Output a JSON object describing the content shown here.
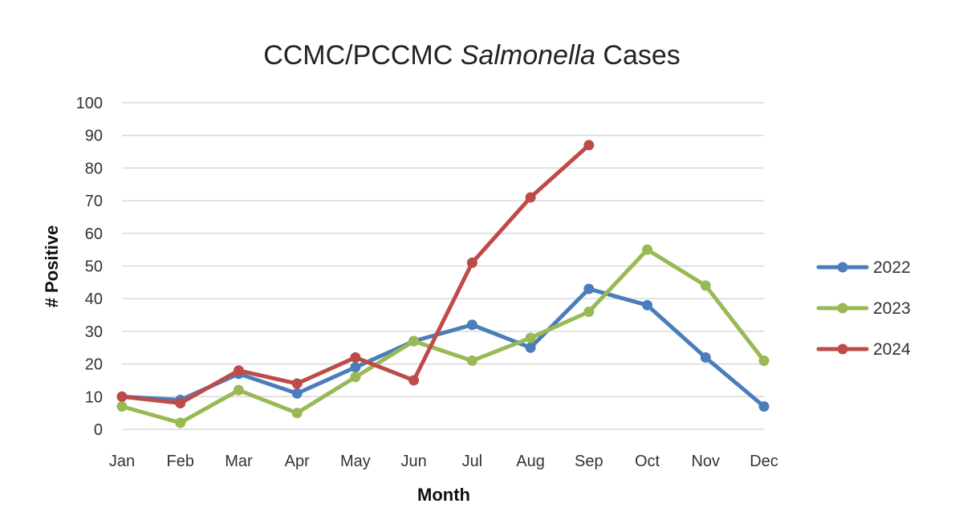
{
  "chart_data": {
    "type": "line",
    "title_prefix": "CCMC/PCCMC ",
    "title_italic": "Salmonella",
    "title_suffix": " Cases",
    "xlabel": "Month",
    "ylabel": "# Positive",
    "ylim": [
      0,
      100
    ],
    "yticks": [
      0,
      10,
      20,
      30,
      40,
      50,
      60,
      70,
      80,
      90,
      100
    ],
    "grid": true,
    "legend_position": "right",
    "categories": [
      "Jan",
      "Feb",
      "Mar",
      "Apr",
      "May",
      "Jun",
      "Jul",
      "Aug",
      "Sep",
      "Oct",
      "Nov",
      "Dec"
    ],
    "series": [
      {
        "name": "2022",
        "color": "#4a7ebb",
        "values": [
          10,
          9,
          17,
          11,
          19,
          27,
          32,
          25,
          43,
          38,
          22,
          7
        ]
      },
      {
        "name": "2023",
        "color": "#98b954",
        "values": [
          7,
          2,
          12,
          5,
          16,
          27,
          21,
          28,
          36,
          55,
          44,
          21
        ]
      },
      {
        "name": "2024",
        "color": "#be4b48",
        "values": [
          10,
          8,
          18,
          14,
          22,
          15,
          51,
          71,
          87,
          null,
          null,
          null
        ]
      }
    ]
  }
}
